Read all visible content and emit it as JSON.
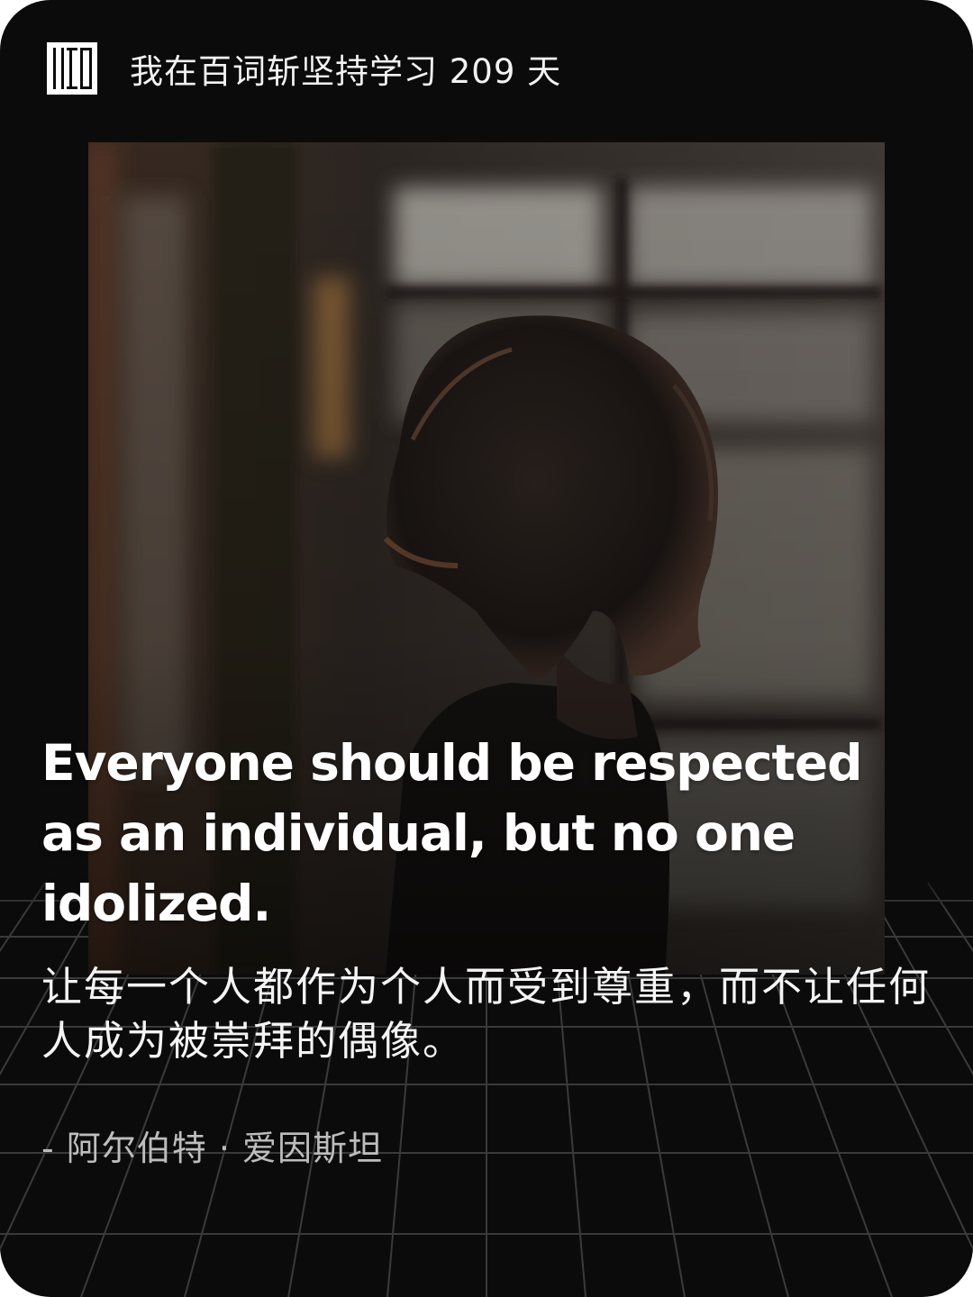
{
  "header": {
    "logo_icon": "baicizhan-logo-icon",
    "title": "我在百词斩坚持学习 209 天"
  },
  "photo": {
    "icon": "portrait-photo"
  },
  "quote": {
    "english": "Everyone should be respected as an individual, but no one idolized.",
    "chinese": "让每一个人都作为个人而受到尊重，而不让任何人成为被崇拜的偶像。",
    "author": "- 阿尔伯特 · 爱因斯坦"
  },
  "colors": {
    "background": "#0b0b0b",
    "text": "#ffffff",
    "author": "#bdbdbd",
    "grid": "#3a3a3a"
  }
}
